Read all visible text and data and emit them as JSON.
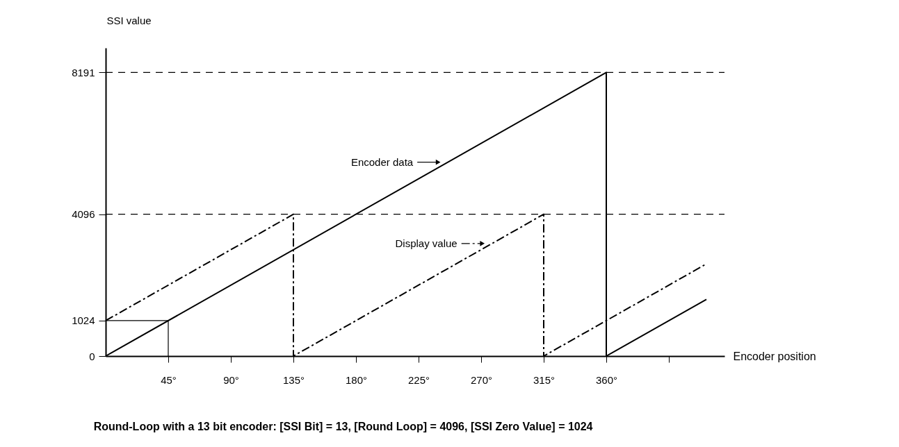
{
  "chart_data": {
    "type": "line",
    "xlabel": "Encoder position",
    "ylabel": "SSI value",
    "xlim": [
      0,
      445
    ],
    "ylim": [
      0,
      8900
    ],
    "xticks": [
      {
        "value": 45,
        "label": "45°"
      },
      {
        "value": 90,
        "label": "90°"
      },
      {
        "value": 135,
        "label": "135°"
      },
      {
        "value": 180,
        "label": "180°"
      },
      {
        "value": 225,
        "label": "225°"
      },
      {
        "value": 270,
        "label": "270°"
      },
      {
        "value": 315,
        "label": "315°"
      },
      {
        "value": 360,
        "label": "360°"
      },
      {
        "value": 405,
        "label": null
      }
    ],
    "yticks": [
      0,
      1024,
      4096,
      8191
    ],
    "grid": false,
    "legend": "center",
    "series": [
      {
        "name": "Encoder data",
        "color": "#000000",
        "line_style": "solid",
        "x": [
          0,
          360,
          360,
          432
        ],
        "values": [
          0,
          8191,
          0,
          1638
        ]
      },
      {
        "name": "Display value",
        "color": "#000000",
        "line_style": "dashed",
        "x": [
          0,
          135,
          135,
          315,
          315,
          432
        ],
        "values": [
          1024,
          4096,
          0,
          4096,
          0,
          2662
        ]
      },
      {
        "color": "#000000",
        "line_style": "solid",
        "x": [
          0,
          45,
          45
        ],
        "values": [
          1024,
          1024,
          0
        ]
      }
    ],
    "ref_lines": [
      {
        "axis": "y",
        "value": 8191,
        "line_style": "dashed",
        "color": "#000000"
      },
      {
        "axis": "y",
        "value": 4096,
        "line_style": "dashed",
        "color": "#000000"
      }
    ],
    "annotations": [
      "Round-Loop with a 13 bit encoder:  [SSI Bit] = 13,  [Round Loop] = 4096,  [SSI Zero Value] = 1024"
    ]
  }
}
